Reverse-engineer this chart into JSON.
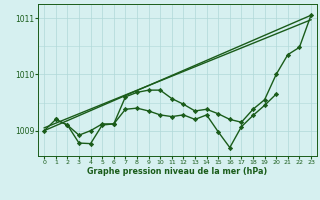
{
  "xlabel": "Graphe pression niveau de la mer (hPa)",
  "background_color": "#d6f0f0",
  "grid_color": "#b0d8d8",
  "line_color": "#1a5c1a",
  "xlim": [
    -0.5,
    23.5
  ],
  "ylim": [
    1008.55,
    1011.25
  ],
  "yticks": [
    1009,
    1010,
    1011
  ],
  "xticks": [
    0,
    1,
    2,
    3,
    4,
    5,
    6,
    7,
    8,
    9,
    10,
    11,
    12,
    13,
    14,
    15,
    16,
    17,
    18,
    19,
    20,
    21,
    22,
    23
  ],
  "series": [
    {
      "x": [
        0,
        23
      ],
      "y": [
        1009.0,
        1011.05
      ],
      "marker": null,
      "linestyle": "-",
      "linewidth": 1.0
    },
    {
      "x": [
        0,
        23
      ],
      "y": [
        1009.05,
        1010.97
      ],
      "marker": null,
      "linestyle": "-",
      "linewidth": 1.0
    },
    {
      "x": [
        0,
        1,
        2,
        3,
        4,
        5,
        6,
        7,
        8,
        9,
        10,
        11,
        12,
        13,
        14,
        15,
        16,
        17,
        18,
        19,
        20,
        21,
        22,
        23
      ],
      "y": [
        1009.0,
        1009.2,
        1009.1,
        1008.78,
        1008.77,
        1009.1,
        1009.12,
        1009.6,
        1009.68,
        1009.72,
        1009.72,
        1009.57,
        1009.47,
        1009.35,
        1009.38,
        1009.3,
        1009.2,
        1009.15,
        1009.38,
        1009.55,
        1010.0,
        1010.35,
        1010.48,
        1011.05
      ],
      "marker": "D",
      "linestyle": "-",
      "linewidth": 1.0
    },
    {
      "x": [
        1,
        2,
        3,
        4,
        5,
        6,
        7,
        8,
        9,
        10,
        11,
        12,
        13,
        14,
        15,
        16,
        17,
        18,
        19,
        20
      ],
      "y": [
        1009.2,
        1009.1,
        1008.92,
        1009.0,
        1009.12,
        1009.12,
        1009.38,
        1009.4,
        1009.35,
        1009.28,
        1009.25,
        1009.28,
        1009.2,
        1009.28,
        1008.98,
        1008.7,
        1009.07,
        1009.27,
        1009.45,
        1009.65
      ],
      "marker": "D",
      "linestyle": "-",
      "linewidth": 1.0
    }
  ]
}
